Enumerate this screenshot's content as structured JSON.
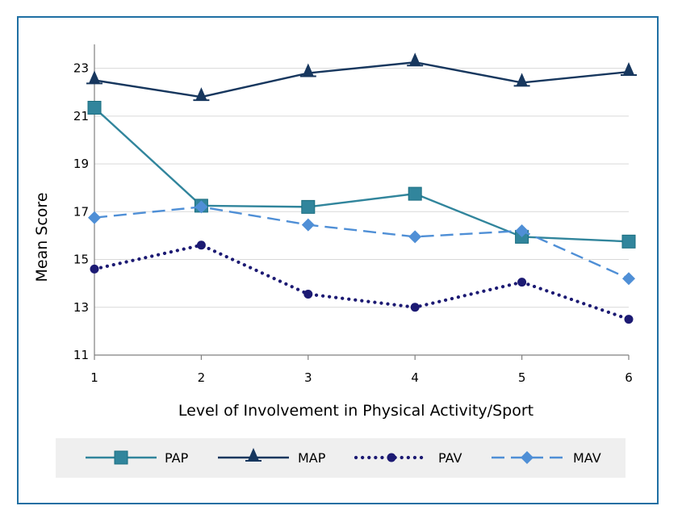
{
  "chart_data": {
    "type": "line",
    "title": "",
    "xlabel": "Level of Involvement in Physical Activity/Sport",
    "ylabel": "Mean  Score",
    "x": [
      1,
      2,
      3,
      4,
      5,
      6
    ],
    "x_tick_labels": [
      "1",
      "2",
      "3",
      "4",
      "5",
      "6"
    ],
    "ylim": [
      11,
      24
    ],
    "y_ticks": [
      11,
      13,
      15,
      17,
      19,
      21,
      23
    ],
    "grid": "horizontal",
    "legend_position": "bottom",
    "series": [
      {
        "name": "PAP",
        "values": [
          21.35,
          17.25,
          17.2,
          17.75,
          15.95,
          15.75
        ],
        "color": "#31859c",
        "marker": "square",
        "line": "solid"
      },
      {
        "name": "MAP",
        "values": [
          22.5,
          21.8,
          22.8,
          23.25,
          22.4,
          22.85
        ],
        "color": "#17375e",
        "marker": "triangle",
        "line": "solid"
      },
      {
        "name": "PAV",
        "values": [
          14.6,
          15.6,
          13.55,
          13.0,
          14.05,
          12.5
        ],
        "color": "#1c1a73",
        "marker": "circle",
        "line": "dotted"
      },
      {
        "name": "MAV",
        "values": [
          16.75,
          17.2,
          16.45,
          15.95,
          16.2,
          14.2
        ],
        "color": "#4f8fd6",
        "marker": "diamond",
        "line": "dashed"
      }
    ]
  }
}
